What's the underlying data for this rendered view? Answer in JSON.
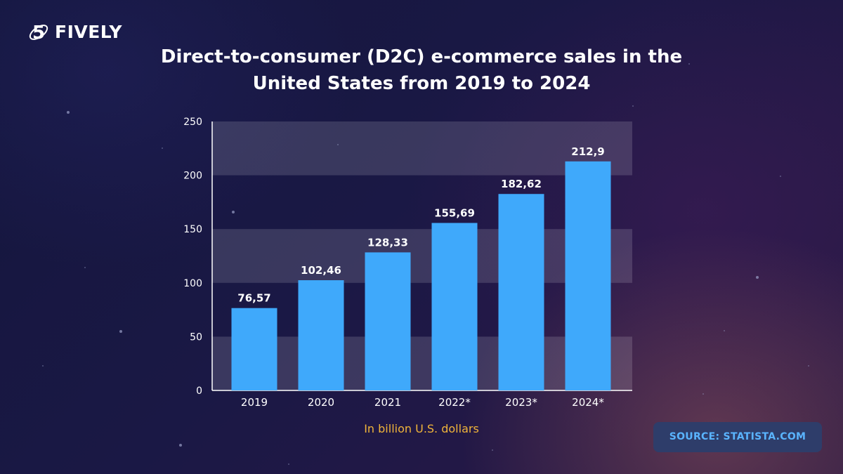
{
  "brand": {
    "name": "FIVELY",
    "logo_icon": "five-ring-logo-icon"
  },
  "colors": {
    "bar": "#3fa9fb",
    "band": "#ffffff",
    "unit_label": "#f0b43a",
    "source_text": "#5ab4ff"
  },
  "source": "SOURCE: STATISTA.COM",
  "chart_data": {
    "type": "bar",
    "title": "Direct-to-consumer (D2C) e-commerce sales in the United States from 2019 to 2024",
    "title_lines": [
      "Direct-to-consumer (D2C) e-commerce sales in the",
      "United States from 2019 to 2024"
    ],
    "unit_label": "In billion U.S. dollars",
    "categories": [
      "2019",
      "2020",
      "2021",
      "2022*",
      "2023*",
      "2024*"
    ],
    "values": [
      76.57,
      102.46,
      128.33,
      155.69,
      182.62,
      212.9
    ],
    "data_labels": [
      "76,57",
      "102,46",
      "128,33",
      "155,69",
      "182,62",
      "212,9"
    ],
    "ylim": [
      0,
      250
    ],
    "yticks": [
      0,
      50,
      100,
      150,
      200,
      250
    ],
    "grid": "alternating horizontal bands",
    "legend": "none"
  }
}
